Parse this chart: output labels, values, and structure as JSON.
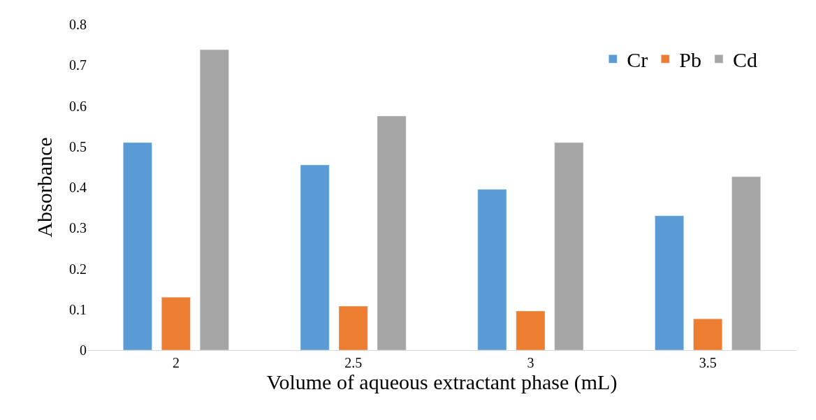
{
  "chart_data": {
    "type": "bar",
    "xlabel": "Volume of aqueous extractant phase (mL)",
    "ylabel": "Absorbance",
    "categories": [
      "2",
      "2.5",
      "3",
      "3.5"
    ],
    "series": [
      {
        "name": "Cr",
        "color": "#5b9bd5",
        "values": [
          0.51,
          0.455,
          0.395,
          0.33
        ]
      },
      {
        "name": "Pb",
        "color": "#ed7d31",
        "values": [
          0.13,
          0.108,
          0.096,
          0.077
        ]
      },
      {
        "name": "Cd",
        "color": "#a5a5a5",
        "values": [
          0.738,
          0.575,
          0.51,
          0.426
        ]
      }
    ],
    "ylim": [
      0,
      0.8
    ],
    "yticks": [
      "0",
      0.1,
      0.2,
      0.3,
      0.4,
      0.5,
      0.6,
      0.7,
      0.8
    ],
    "grid": false,
    "legend": "top right"
  }
}
